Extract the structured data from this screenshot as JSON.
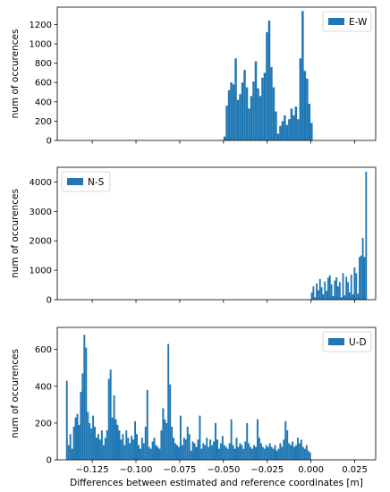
{
  "chart_data": [
    {
      "type": "bar",
      "series_name": "E-W",
      "ylabel": "num of occurences",
      "xlim": [
        -0.145,
        0.037
      ],
      "ylim": [
        0,
        1380
      ],
      "yticks": [
        0,
        200,
        400,
        600,
        800,
        1000,
        1200
      ],
      "legend": "top-right",
      "color": "#1f77b4",
      "x_start": -0.05,
      "x_end": 0.001,
      "values": [
        40,
        360,
        520,
        600,
        580,
        850,
        420,
        480,
        600,
        730,
        550,
        330,
        460,
        610,
        820,
        540,
        460,
        650,
        700,
        1120,
        1240,
        760,
        550,
        300,
        70,
        150,
        200,
        260,
        160,
        220,
        330,
        260,
        350,
        220,
        850,
        1340,
        720,
        640,
        380,
        180
      ]
    },
    {
      "type": "bar",
      "series_name": "N-S",
      "ylabel": "num of occurences",
      "xlim": [
        -0.145,
        0.037
      ],
      "ylim": [
        0,
        4500
      ],
      "yticks": [
        0,
        1000,
        2000,
        3000,
        4000
      ],
      "legend": "top-left",
      "color": "#1f77b4",
      "x_start": 0.0,
      "x_end": 0.032,
      "values": [
        250,
        450,
        80,
        550,
        320,
        700,
        420,
        180,
        620,
        300,
        750,
        830,
        520,
        120,
        650,
        760,
        450,
        600,
        80,
        900,
        150,
        780,
        600,
        250,
        850,
        180,
        1100,
        900,
        200,
        1450,
        1500,
        2100,
        1450,
        4350
      ]
    },
    {
      "type": "bar",
      "series_name": "U-D",
      "ylabel": "num of occurences",
      "xlabel": "Differences between estimated and reference coordinates [m]",
      "xlim": [
        -0.145,
        0.037
      ],
      "ylim": [
        0,
        720
      ],
      "yticks": [
        0,
        200,
        400,
        600
      ],
      "xticks": [
        -0.125,
        -0.1,
        -0.075,
        -0.05,
        -0.025,
        0.0,
        0.025
      ],
      "xtick_labels": [
        "−0.125",
        "−0.100",
        "−0.075",
        "−0.050",
        "−0.025",
        "0.000",
        "0.025"
      ],
      "legend": "top-right",
      "color": "#1f77b4",
      "x_start": -0.14,
      "x_end": 0.0,
      "values": [
        430,
        80,
        140,
        60,
        180,
        230,
        250,
        190,
        370,
        470,
        680,
        610,
        260,
        200,
        170,
        240,
        180,
        120,
        140,
        110,
        160,
        80,
        120,
        160,
        440,
        490,
        230,
        350,
        220,
        190,
        160,
        110,
        140,
        80,
        160,
        120,
        90,
        130,
        110,
        210,
        140,
        80,
        60,
        120,
        90,
        180,
        380,
        70,
        60,
        100,
        120,
        80,
        70,
        60,
        160,
        280,
        220,
        200,
        630,
        410,
        180,
        120,
        90,
        80,
        70,
        240,
        80,
        120,
        110,
        180,
        140,
        50,
        100,
        90,
        70,
        110,
        240,
        60,
        90,
        80,
        120,
        70,
        110,
        80,
        100,
        200,
        110,
        60,
        90,
        130,
        80,
        70,
        60,
        90,
        220,
        80,
        60,
        120,
        70,
        90,
        80,
        60,
        100,
        200,
        90,
        70,
        60,
        80,
        70,
        220,
        120,
        90,
        70,
        60,
        80,
        70,
        90,
        70,
        60,
        80,
        50,
        60,
        90,
        70,
        110,
        210,
        160,
        90,
        80,
        100,
        70,
        80,
        120,
        90,
        110,
        70,
        60,
        80,
        50,
        40
      ]
    }
  ]
}
